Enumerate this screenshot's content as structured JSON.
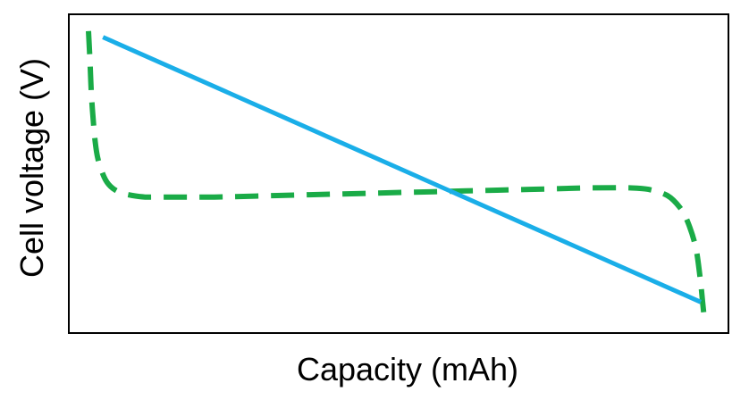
{
  "chart_data": {
    "type": "line",
    "title": "",
    "xlabel": "Capacity (mAh)",
    "ylabel": "Cell voltage (V)",
    "xlim": [
      0,
      100
    ],
    "ylim": [
      0,
      100
    ],
    "grid": false,
    "legend": "none",
    "axis_ticks": false,
    "series": [
      {
        "style": "dashed",
        "color": "#1aab47",
        "x": [
          0,
          0.2,
          0.5,
          1,
          1.5,
          2.5,
          3.5,
          5,
          7,
          9,
          12,
          20,
          30,
          40,
          50,
          60,
          70,
          80,
          86,
          89,
          92,
          94,
          95.3,
          96.5,
          97.2,
          97.6,
          97.8
        ],
        "y": [
          98,
          90,
          76,
          63,
          56,
          50,
          47,
          45,
          44,
          43.5,
          43.5,
          43.5,
          44,
          44.5,
          45,
          45.5,
          46,
          46.5,
          46.5,
          46,
          44,
          40,
          35,
          27,
          17,
          9,
          5
        ]
      },
      {
        "style": "solid",
        "color": "#1aaee8",
        "x": [
          2.3,
          97.3
        ],
        "y": [
          96,
          9
        ]
      }
    ]
  }
}
